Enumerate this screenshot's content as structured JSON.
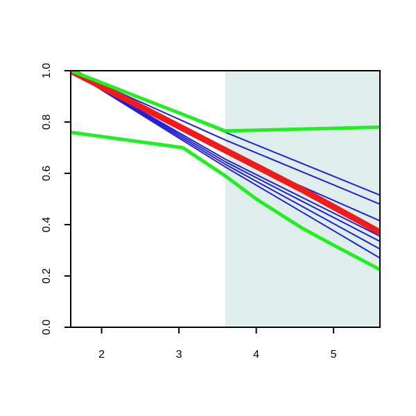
{
  "chart_data": {
    "type": "line",
    "title": "",
    "xlabel": "",
    "ylabel": "",
    "xlim": [
      1.6,
      5.6
    ],
    "ylim": [
      0.0,
      1.0
    ],
    "x_ticks": [
      "2",
      "3",
      "4",
      "5"
    ],
    "y_ticks": [
      "0.0",
      "0.2",
      "0.4",
      "0.6",
      "0.8",
      "1.0"
    ],
    "shaded_region": {
      "x_from": 3.6,
      "x_to": 5.6,
      "color": "#e0eded"
    },
    "grid": false,
    "legend": "none",
    "series": [
      {
        "color": "#1f1fd6",
        "width": 2,
        "points": [
          [
            1.6,
            1.0
          ],
          [
            3.6,
            0.76
          ],
          [
            5.6,
            0.515
          ]
        ]
      },
      {
        "color": "#1f1fd6",
        "width": 2,
        "points": [
          [
            1.6,
            1.0
          ],
          [
            3.6,
            0.73
          ],
          [
            5.6,
            0.48
          ]
        ]
      },
      {
        "color": "#1f1fd6",
        "width": 2,
        "points": [
          [
            1.6,
            1.0
          ],
          [
            3.6,
            0.68
          ],
          [
            5.6,
            0.415
          ]
        ]
      },
      {
        "color": "#1f1fd6",
        "width": 2,
        "points": [
          [
            1.6,
            1.0
          ],
          [
            3.6,
            0.655
          ],
          [
            5.6,
            0.355
          ]
        ]
      },
      {
        "color": "#1f1fd6",
        "width": 2,
        "points": [
          [
            1.6,
            1.0
          ],
          [
            3.6,
            0.645
          ],
          [
            5.6,
            0.335
          ]
        ]
      },
      {
        "color": "#1f1fd6",
        "width": 2,
        "points": [
          [
            1.6,
            1.0
          ],
          [
            3.6,
            0.635
          ],
          [
            5.6,
            0.305
          ]
        ]
      },
      {
        "color": "#1f1fd6",
        "width": 2,
        "points": [
          [
            1.6,
            1.0
          ],
          [
            3.6,
            0.625
          ],
          [
            5.6,
            0.27
          ]
        ]
      },
      {
        "color": "#ee1c1c",
        "width": 9,
        "points": [
          [
            1.6,
            1.0
          ],
          [
            2.6,
            0.845
          ],
          [
            3.6,
            0.69
          ],
          [
            4.6,
            0.535
          ],
          [
            5.6,
            0.37
          ]
        ]
      },
      {
        "color": "#22ee22",
        "width": 5,
        "points": [
          [
            1.6,
            1.0
          ],
          [
            3.6,
            0.765
          ],
          [
            5.6,
            0.78
          ]
        ]
      },
      {
        "color": "#22ee22",
        "width": 5,
        "points": [
          [
            1.6,
            0.76
          ],
          [
            3.05,
            0.7
          ],
          [
            3.6,
            0.59
          ],
          [
            4.0,
            0.5
          ],
          [
            4.6,
            0.385
          ],
          [
            5.0,
            0.32
          ],
          [
            5.6,
            0.225
          ]
        ]
      }
    ]
  }
}
